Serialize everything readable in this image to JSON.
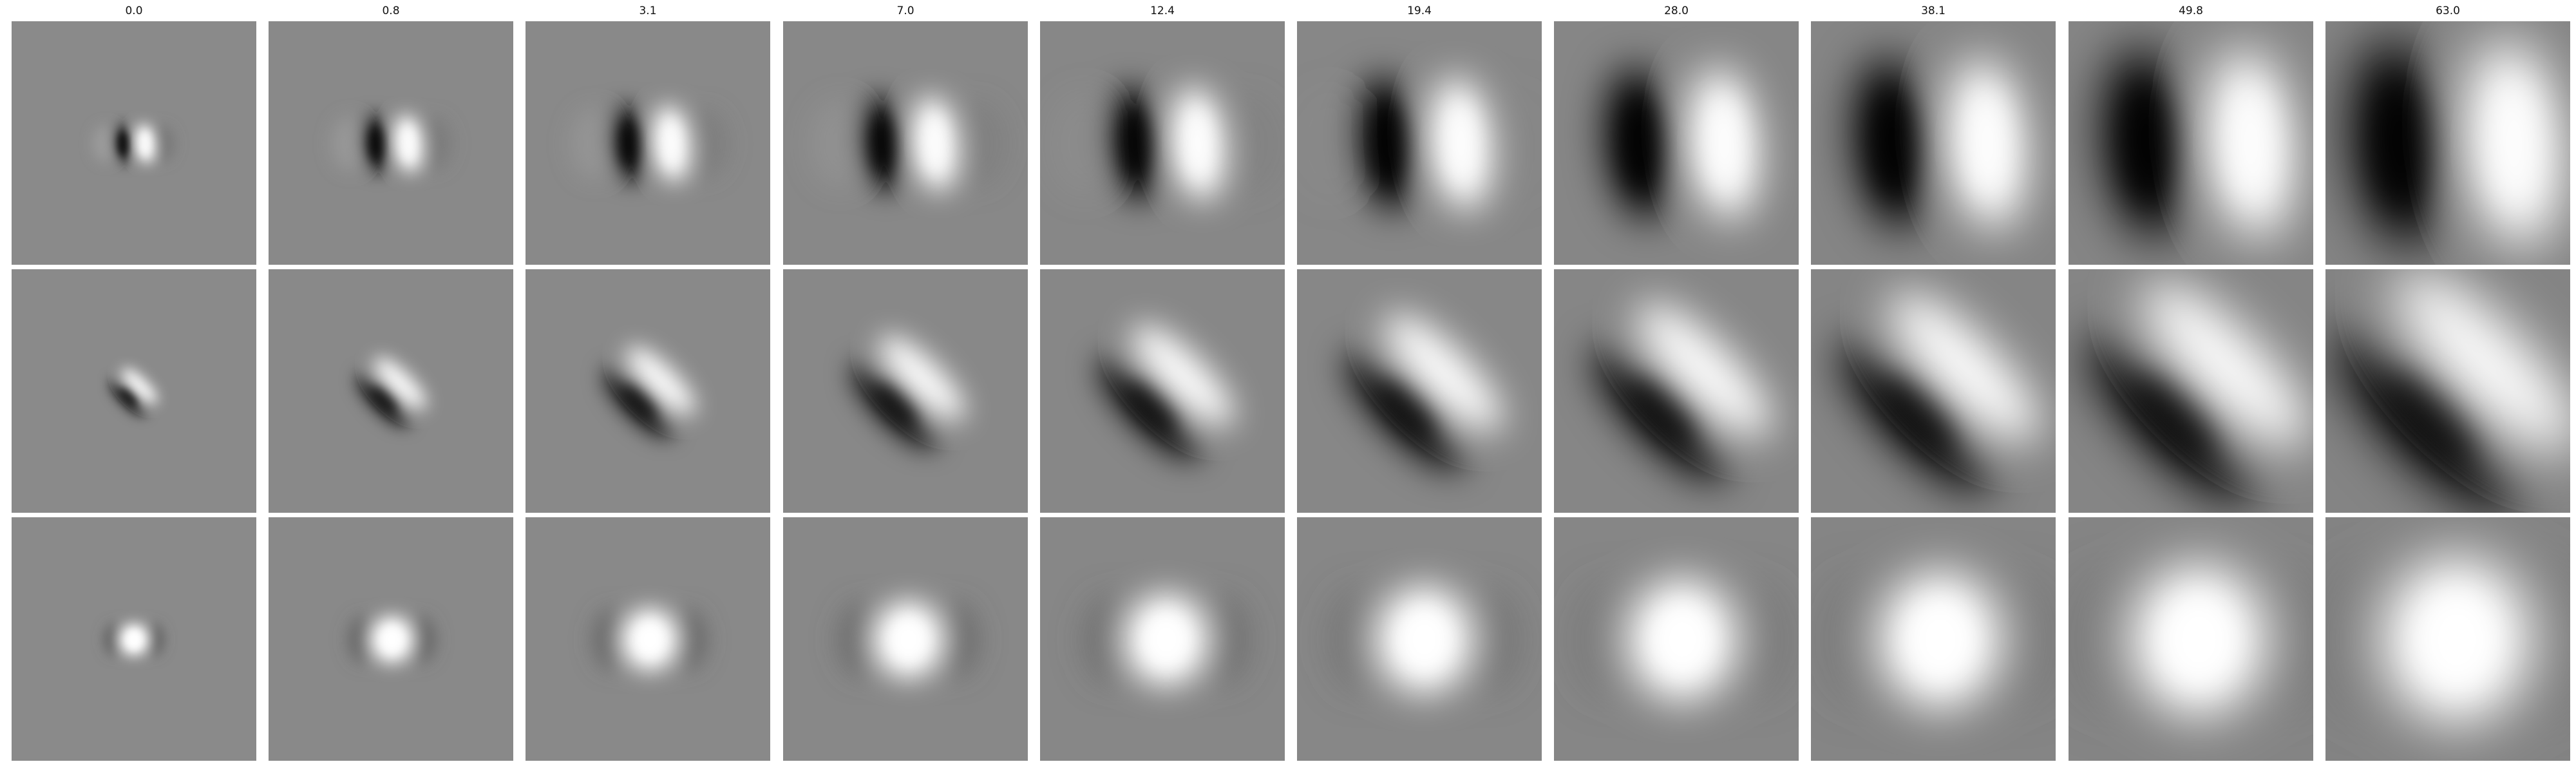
{
  "figure": {
    "column_titles": [
      "0.0",
      "0.8",
      "3.1",
      "7.0",
      "12.4",
      "19.4",
      "28.0",
      "38.1",
      "49.8",
      "63.0"
    ],
    "row_patterns": [
      "vertical-dipole",
      "diagonal-dipole",
      "central-blob"
    ],
    "colormap": "gray",
    "background": "#ffffff"
  }
}
